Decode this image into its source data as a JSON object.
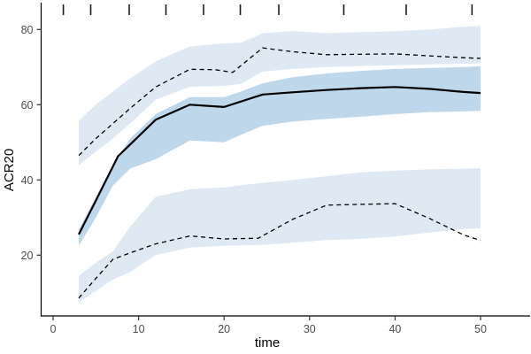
{
  "chart_data": {
    "type": "line",
    "title": "",
    "xlabel": "time",
    "ylabel": "ACR20",
    "xlim": [
      -1.5,
      55.3
    ],
    "ylim": [
      3.8,
      86.7
    ],
    "x_ticks": [
      0,
      10,
      20,
      30,
      40,
      50
    ],
    "y_ticks": [
      20,
      40,
      60,
      80
    ],
    "grid": false,
    "legend": "none",
    "rug_x": [
      1.2,
      4.4,
      8.9,
      13.2,
      17.6,
      21.9,
      26.4,
      34.0,
      41.3,
      49.0
    ],
    "ribbons": [
      {
        "name": "upper-ci",
        "color": "#dfe9f4",
        "x": [
          3,
          5,
          7,
          9,
          12,
          16,
          20,
          22,
          24.5,
          28,
          32,
          36,
          40,
          44,
          48,
          50
        ],
        "top": [
          55.7,
          60.0,
          63.5,
          67.0,
          71.5,
          75.5,
          76.3,
          76.5,
          79.0,
          79.6,
          79.0,
          79.3,
          79.5,
          80.0,
          80.7,
          81.0
        ],
        "bottom": [
          43.9,
          47.5,
          51.0,
          55.0,
          61.3,
          64.7,
          65.0,
          65.5,
          68.8,
          69.5,
          70.0,
          70.3,
          70.5,
          70.7,
          70.9,
          71.0
        ]
      },
      {
        "name": "lower-ci",
        "color": "#dfe9f4",
        "x": [
          3,
          5,
          7,
          9,
          12,
          16,
          20,
          22,
          24.5,
          28,
          32,
          36,
          40,
          44,
          48,
          50
        ],
        "top": [
          14.5,
          18.0,
          21.0,
          27.5,
          35.5,
          37.5,
          38.0,
          38.6,
          39.2,
          40.0,
          41.0,
          42.0,
          42.5,
          42.8,
          43.0,
          43.1
        ],
        "bottom": [
          7.4,
          10.5,
          13.5,
          15.5,
          20.0,
          22.0,
          22.5,
          22.6,
          22.7,
          23.3,
          24.0,
          24.3,
          25.0,
          26.0,
          27.0,
          27.1
        ]
      },
      {
        "name": "mean-ci",
        "color": "#bfd7eb",
        "x": [
          3,
          5,
          7,
          9,
          12,
          16,
          20,
          22,
          24.5,
          28,
          32,
          36,
          40,
          44,
          48,
          50
        ],
        "top": [
          26.8,
          35.5,
          44.0,
          51.0,
          57.5,
          62.0,
          62.0,
          63.5,
          65.7,
          67.3,
          68.3,
          69.0,
          69.5,
          69.8,
          70.0,
          70.2
        ],
        "bottom": [
          22.5,
          30.0,
          38.5,
          43.0,
          45.5,
          50.5,
          50.0,
          52.0,
          54.4,
          55.5,
          56.2,
          56.8,
          57.5,
          58.0,
          58.2,
          58.4
        ]
      }
    ],
    "series": [
      {
        "name": "upper-bound",
        "style": "dashed",
        "x": [
          3,
          5,
          7,
          9,
          12,
          16,
          19,
          21,
          24.5,
          28,
          32,
          36,
          40,
          44,
          48,
          50
        ],
        "y": [
          46.5,
          51.0,
          55.0,
          59.0,
          64.7,
          69.4,
          69.3,
          68.6,
          75.1,
          74.1,
          73.3,
          73.4,
          73.5,
          73.0,
          72.5,
          72.3
        ]
      },
      {
        "name": "mean",
        "style": "solid",
        "x": [
          3,
          5,
          7.6,
          9,
          12,
          16,
          20,
          24.5,
          28,
          32,
          36,
          40,
          44,
          48,
          50
        ],
        "y": [
          25.5,
          34.5,
          46.3,
          49.4,
          56.0,
          60.0,
          59.4,
          62.7,
          63.3,
          63.9,
          64.4,
          64.7,
          64.2,
          63.4,
          63.1
        ]
      },
      {
        "name": "lower-bound",
        "style": "dashed",
        "x": [
          3,
          5,
          7,
          9,
          12,
          16,
          20,
          24,
          28,
          32,
          36,
          40,
          44,
          48,
          50
        ],
        "y": [
          8.6,
          13.8,
          18.9,
          20.6,
          23.0,
          25.1,
          24.3,
          24.5,
          29.5,
          33.3,
          33.5,
          33.7,
          29.8,
          25.4,
          23.9
        ]
      }
    ],
    "colors": {
      "line": "#000000",
      "axis": "#000000",
      "tick": "#333333",
      "tick_label": "#4d4d4d",
      "axis_title": "#000000",
      "rug": "#1a1a1a",
      "background": "#ffffff"
    }
  }
}
